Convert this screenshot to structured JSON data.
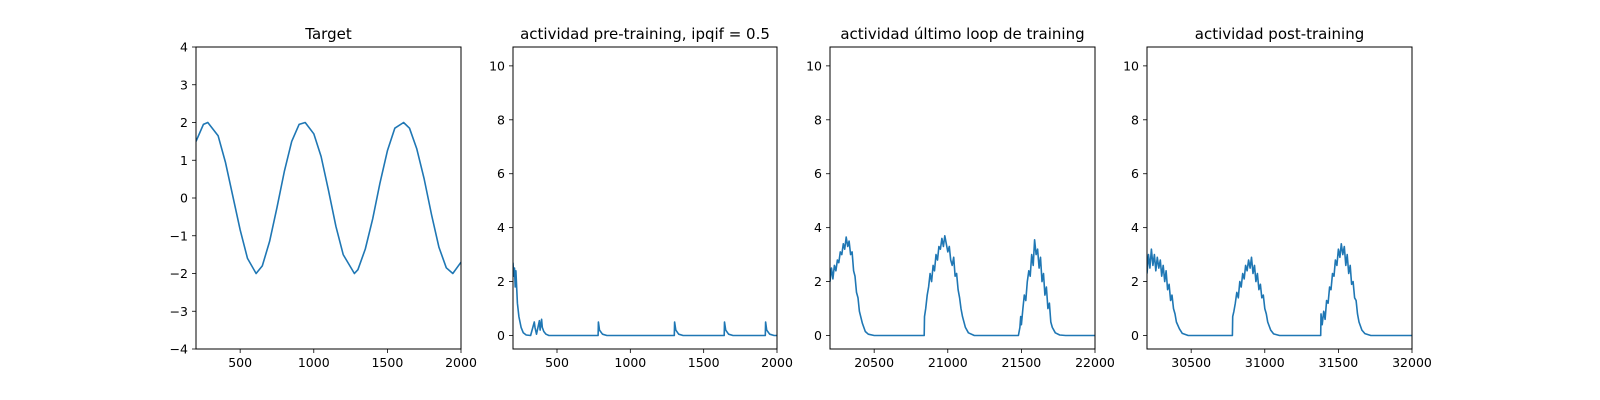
{
  "chart_data": [
    {
      "type": "line",
      "title": "Target",
      "xlim": [
        200,
        2000
      ],
      "ylim": [
        -4,
        4
      ],
      "xticks": [
        500,
        1000,
        1500,
        2000
      ],
      "yticks": [
        -4,
        -3,
        -2,
        -1,
        0,
        1,
        2,
        3,
        4
      ],
      "series": [
        {
          "color": "#1f77b4",
          "x": [
            200,
            250,
            280,
            350,
            400,
            450,
            500,
            550,
            608,
            650,
            700,
            750,
            800,
            850,
            900,
            942,
            1000,
            1050,
            1100,
            1150,
            1200,
            1276,
            1300,
            1350,
            1400,
            1450,
            1500,
            1550,
            1610,
            1650,
            1700,
            1750,
            1800,
            1850,
            1900,
            1944,
            2000
          ],
          "y": [
            1.5,
            1.95,
            2.0,
            1.65,
            0.95,
            0.05,
            -0.85,
            -1.6,
            -2.0,
            -1.8,
            -1.15,
            -0.25,
            0.7,
            1.5,
            1.95,
            2.0,
            1.7,
            1.1,
            0.2,
            -0.75,
            -1.5,
            -2.0,
            -1.9,
            -1.35,
            -0.55,
            0.4,
            1.25,
            1.85,
            2.0,
            1.85,
            1.3,
            0.5,
            -0.45,
            -1.3,
            -1.85,
            -2.0,
            -1.7
          ]
        }
      ]
    },
    {
      "type": "line",
      "title": "actividad pre-training, ipqif = 0.5",
      "xlim": [
        200,
        2000
      ],
      "ylim": [
        -0.5,
        10.7
      ],
      "xticks": [
        500,
        1000,
        1500,
        2000
      ],
      "yticks": [
        0,
        2,
        4,
        6,
        8,
        10
      ],
      "series": [
        {
          "color": "#1f77b4",
          "x": [
            200,
            205,
            210,
            215,
            220,
            230,
            240,
            255,
            270,
            290,
            320,
            345,
            350,
            360,
            380,
            385,
            395,
            400,
            410,
            425,
            445,
            500,
            780,
            782,
            790,
            810,
            840,
            1300,
            1302,
            1310,
            1330,
            1360,
            1640,
            1642,
            1650,
            1670,
            1700,
            1920,
            1922,
            1930,
            1950,
            1980,
            2000
          ],
          "y": [
            2.7,
            2.2,
            2.5,
            1.8,
            2.4,
            1.2,
            0.7,
            0.3,
            0.1,
            0.02,
            0.0,
            0.5,
            0.3,
            0.05,
            0.55,
            0.2,
            0.6,
            0.3,
            0.15,
            0.05,
            0.0,
            0.0,
            0.0,
            0.5,
            0.2,
            0.05,
            0.0,
            0.0,
            0.5,
            0.2,
            0.05,
            0.0,
            0.0,
            0.5,
            0.2,
            0.05,
            0.0,
            0.0,
            0.5,
            0.2,
            0.05,
            0.0,
            0.0
          ]
        }
      ]
    },
    {
      "type": "line",
      "title": "actividad último loop de training",
      "xlim": [
        20200,
        22000
      ],
      "ylim": [
        -0.5,
        10.7
      ],
      "xticks": [
        20500,
        21000,
        21500,
        22000
      ],
      "yticks": [
        0,
        2,
        4,
        6,
        8,
        10
      ],
      "series": [
        {
          "color": "#1f77b4",
          "x": [
            20200,
            20210,
            20220,
            20230,
            20240,
            20250,
            20260,
            20270,
            20280,
            20290,
            20300,
            20310,
            20320,
            20330,
            20340,
            20350,
            20360,
            20370,
            20380,
            20390,
            20400,
            20420,
            20440,
            20460,
            20500,
            20840,
            20842,
            20850,
            20860,
            20870,
            20880,
            20890,
            20900,
            20910,
            20920,
            20930,
            20940,
            20950,
            20960,
            20970,
            20980,
            20990,
            21000,
            21010,
            21020,
            21030,
            21040,
            21050,
            21060,
            21070,
            21080,
            21090,
            21100,
            21120,
            21140,
            21180,
            21480,
            21490,
            21495,
            21500,
            21510,
            21520,
            21530,
            21540,
            21550,
            21560,
            21570,
            21580,
            21590,
            21600,
            21610,
            21620,
            21630,
            21640,
            21650,
            21660,
            21670,
            21680,
            21690,
            21700,
            21710,
            21730,
            21760,
            21800,
            22000
          ],
          "y": [
            2.0,
            2.5,
            2.1,
            2.6,
            2.4,
            2.8,
            2.7,
            3.1,
            3.0,
            3.4,
            3.2,
            3.65,
            3.3,
            3.5,
            3.0,
            3.1,
            2.4,
            2.2,
            1.6,
            1.4,
            0.9,
            0.45,
            0.15,
            0.05,
            0.0,
            0.0,
            0.7,
            1.0,
            1.5,
            1.8,
            2.3,
            2.0,
            2.6,
            2.4,
            3.0,
            2.8,
            3.3,
            3.2,
            3.6,
            3.3,
            3.7,
            3.4,
            3.1,
            3.3,
            2.8,
            2.6,
            2.9,
            2.2,
            2.3,
            1.7,
            1.4,
            1.0,
            0.7,
            0.3,
            0.1,
            0.0,
            0.0,
            0.3,
            0.7,
            0.4,
            1.0,
            1.5,
            1.3,
            2.0,
            2.4,
            2.2,
            3.0,
            2.6,
            3.55,
            3.0,
            3.2,
            2.5,
            2.9,
            2.0,
            2.3,
            1.5,
            1.8,
            1.0,
            1.2,
            0.5,
            0.3,
            0.1,
            0.02,
            0.0,
            0.0
          ]
        }
      ]
    },
    {
      "type": "line",
      "title": "actividad post-training",
      "xlim": [
        30200,
        32000
      ],
      "ylim": [
        -0.5,
        10.7
      ],
      "xticks": [
        30500,
        31000,
        31500,
        32000
      ],
      "yticks": [
        0,
        2,
        4,
        6,
        8,
        10
      ],
      "series": [
        {
          "color": "#1f77b4",
          "x": [
            30200,
            30210,
            30220,
            30230,
            30240,
            30250,
            30260,
            30270,
            30280,
            30290,
            30300,
            30310,
            30320,
            30330,
            30340,
            30350,
            30360,
            30370,
            30380,
            30390,
            30400,
            30420,
            30440,
            30480,
            30780,
            30782,
            30790,
            30800,
            30810,
            30820,
            30830,
            30840,
            30850,
            30860,
            30870,
            30880,
            30890,
            30900,
            30910,
            30920,
            30930,
            30940,
            30950,
            30960,
            30970,
            30980,
            30990,
            31000,
            31010,
            31020,
            31040,
            31060,
            31100,
            31380,
            31382,
            31390,
            31400,
            31410,
            31420,
            31430,
            31440,
            31450,
            31460,
            31470,
            31480,
            31490,
            31500,
            31510,
            31520,
            31530,
            31540,
            31550,
            31560,
            31570,
            31580,
            31590,
            31600,
            31610,
            31620,
            31630,
            31640,
            31660,
            31680,
            31720,
            32000
          ],
          "y": [
            2.3,
            3.0,
            2.5,
            3.2,
            2.6,
            3.0,
            2.4,
            2.9,
            2.5,
            2.8,
            2.2,
            2.6,
            2.0,
            2.4,
            1.7,
            1.9,
            1.3,
            1.5,
            1.0,
            0.8,
            0.5,
            0.25,
            0.08,
            0.0,
            0.0,
            0.7,
            0.9,
            1.2,
            1.6,
            1.4,
            2.0,
            1.8,
            2.3,
            2.1,
            2.6,
            2.4,
            2.8,
            2.5,
            2.9,
            2.3,
            2.6,
            2.0,
            2.3,
            1.7,
            1.9,
            1.4,
            1.5,
            1.0,
            0.8,
            0.5,
            0.2,
            0.06,
            0.0,
            0.0,
            0.8,
            0.4,
            0.9,
            0.6,
            1.3,
            1.2,
            1.8,
            1.7,
            2.3,
            2.2,
            2.8,
            2.6,
            3.2,
            2.9,
            3.4,
            3.0,
            3.3,
            2.6,
            3.0,
            2.3,
            2.6,
            1.9,
            2.0,
            1.4,
            1.3,
            0.8,
            0.5,
            0.2,
            0.07,
            0.0,
            0.0
          ]
        }
      ]
    }
  ]
}
